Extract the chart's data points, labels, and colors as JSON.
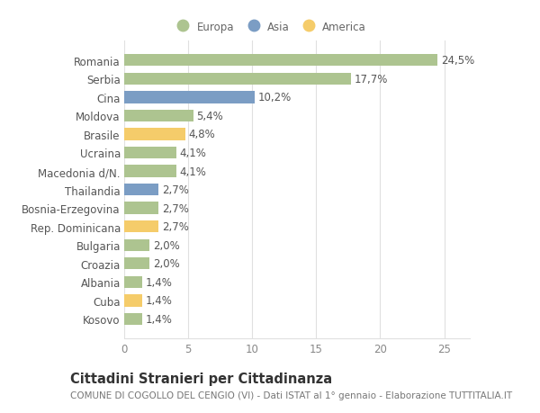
{
  "categories": [
    "Kosovo",
    "Cuba",
    "Albania",
    "Croazia",
    "Bulgaria",
    "Rep. Dominicana",
    "Bosnia-Erzegovina",
    "Thailandia",
    "Macedonia d/N.",
    "Ucraina",
    "Brasile",
    "Moldova",
    "Cina",
    "Serbia",
    "Romania"
  ],
  "values": [
    1.4,
    1.4,
    1.4,
    2.0,
    2.0,
    2.7,
    2.7,
    2.7,
    4.1,
    4.1,
    4.8,
    5.4,
    10.2,
    17.7,
    24.5
  ],
  "labels": [
    "1,4%",
    "1,4%",
    "1,4%",
    "2,0%",
    "2,0%",
    "2,7%",
    "2,7%",
    "2,7%",
    "4,1%",
    "4,1%",
    "4,8%",
    "5,4%",
    "10,2%",
    "17,7%",
    "24,5%"
  ],
  "continents": [
    "Europa",
    "America",
    "Europa",
    "Europa",
    "Europa",
    "America",
    "Europa",
    "Asia",
    "Europa",
    "Europa",
    "America",
    "Europa",
    "Asia",
    "Europa",
    "Europa"
  ],
  "colors": {
    "Europa": "#adc490",
    "Asia": "#7b9dc4",
    "America": "#f5cc6a"
  },
  "title": "Cittadini Stranieri per Cittadinanza",
  "subtitle": "COMUNE DI COGOLLO DEL CENGIO (VI) - Dati ISTAT al 1° gennaio - Elaborazione TUTTITALIA.IT",
  "xlim": [
    0,
    27
  ],
  "xticks": [
    0,
    5,
    10,
    15,
    20,
    25
  ],
  "background_color": "#ffffff",
  "grid_color": "#e0e0e0",
  "bar_height": 0.65,
  "label_fontsize": 8.5,
  "tick_fontsize": 8.5,
  "ylabel_fontsize": 8.5,
  "title_fontsize": 10.5,
  "subtitle_fontsize": 7.5
}
